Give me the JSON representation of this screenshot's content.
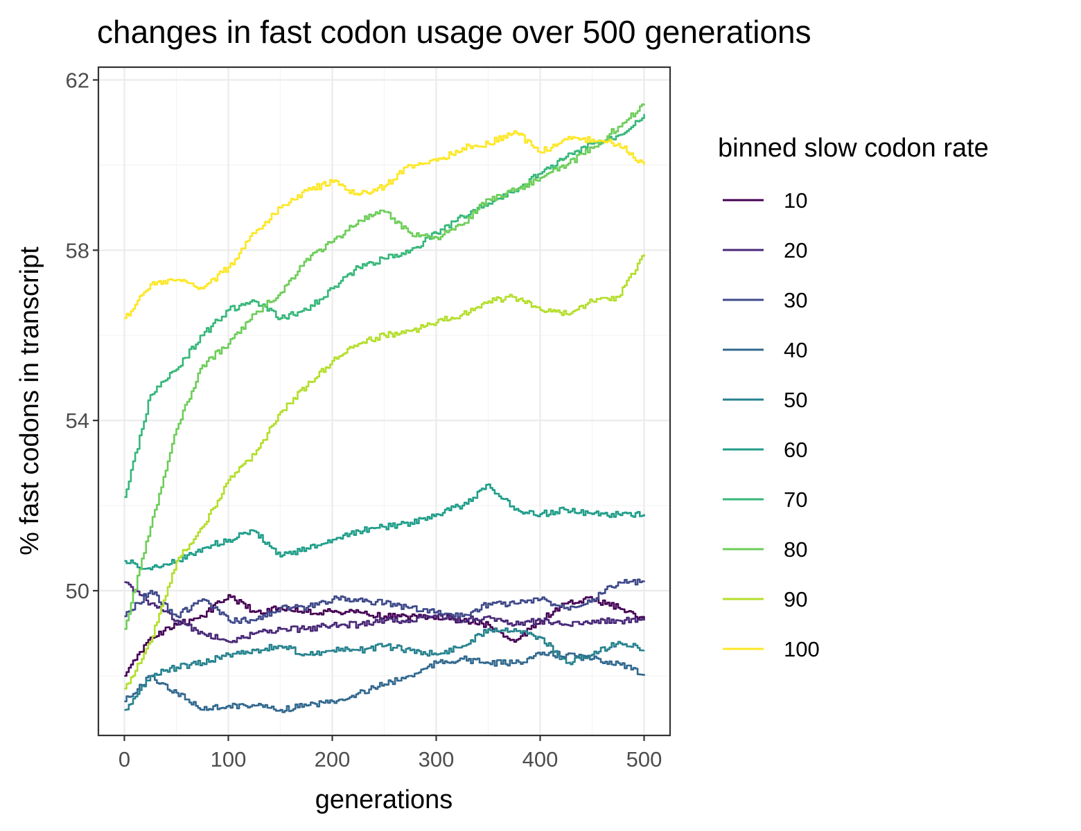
{
  "chart_data": {
    "type": "line",
    "title": "changes in fast codon usage over 500 generations",
    "xlabel": "generations",
    "ylabel": "% fast codons in transcript",
    "xlim": [
      -25,
      525
    ],
    "ylim": [
      46.6,
      62.3
    ],
    "x_ticks": [
      0,
      100,
      200,
      300,
      400,
      500
    ],
    "y_ticks": [
      50,
      54,
      58,
      62
    ],
    "grid": true,
    "legend": {
      "title": "binned slow codon rate",
      "position": "right"
    },
    "x": [
      0,
      25,
      50,
      75,
      100,
      125,
      150,
      175,
      200,
      225,
      250,
      275,
      300,
      325,
      350,
      375,
      400,
      425,
      450,
      475,
      500
    ],
    "series": [
      {
        "name": "10",
        "color": "#440154",
        "values": [
          48.0,
          48.9,
          49.2,
          49.4,
          49.9,
          49.5,
          49.6,
          49.5,
          49.5,
          49.5,
          49.4,
          49.4,
          49.4,
          49.3,
          49.2,
          48.8,
          49.3,
          49.7,
          49.8,
          49.6,
          49.3
        ]
      },
      {
        "name": "20",
        "color": "#482878",
        "values": [
          50.2,
          49.7,
          49.3,
          49.0,
          48.8,
          49.0,
          49.1,
          49.1,
          49.2,
          49.2,
          49.3,
          49.3,
          49.4,
          49.3,
          49.4,
          49.2,
          49.3,
          49.2,
          49.3,
          49.3,
          49.3
        ]
      },
      {
        "name": "30",
        "color": "#3e4989",
        "values": [
          49.4,
          50.0,
          49.4,
          49.8,
          49.3,
          49.3,
          49.6,
          49.6,
          49.8,
          49.8,
          49.7,
          49.6,
          49.5,
          49.4,
          49.7,
          49.7,
          49.8,
          49.6,
          49.8,
          50.2,
          50.2
        ]
      },
      {
        "name": "40",
        "color": "#31688e",
        "values": [
          47.4,
          48.0,
          47.6,
          47.2,
          47.3,
          47.3,
          47.2,
          47.3,
          47.4,
          47.6,
          47.8,
          48.0,
          48.3,
          48.4,
          48.3,
          48.3,
          48.5,
          48.5,
          48.4,
          48.3,
          48.0
        ]
      },
      {
        "name": "50",
        "color": "#26828e",
        "values": [
          47.2,
          48.0,
          48.2,
          48.3,
          48.5,
          48.6,
          48.7,
          48.5,
          48.6,
          48.6,
          48.7,
          48.6,
          48.5,
          48.7,
          49.1,
          49.1,
          48.9,
          48.3,
          48.5,
          48.8,
          48.6
        ]
      },
      {
        "name": "60",
        "color": "#1f9e89",
        "values": [
          50.7,
          50.5,
          50.7,
          51.0,
          51.2,
          51.4,
          50.8,
          51.0,
          51.2,
          51.4,
          51.5,
          51.6,
          51.8,
          52.0,
          52.5,
          51.9,
          51.8,
          51.9,
          51.8,
          51.8,
          51.8
        ]
      },
      {
        "name": "70",
        "color": "#35b779",
        "values": [
          52.2,
          54.6,
          55.2,
          56.0,
          56.6,
          56.8,
          56.4,
          56.6,
          57.1,
          57.6,
          57.8,
          58.0,
          58.4,
          58.8,
          59.1,
          59.4,
          59.8,
          60.2,
          60.5,
          60.7,
          61.2
        ]
      },
      {
        "name": "80",
        "color": "#6dcd59",
        "values": [
          49.1,
          51.5,
          53.8,
          55.3,
          55.8,
          56.5,
          57.0,
          57.8,
          58.2,
          58.7,
          58.9,
          58.4,
          58.3,
          58.6,
          59.2,
          59.4,
          59.7,
          60.0,
          60.4,
          60.9,
          61.4
        ]
      },
      {
        "name": "90",
        "color": "#b4de2c",
        "values": [
          47.7,
          48.8,
          50.7,
          51.5,
          52.6,
          53.2,
          54.2,
          54.8,
          55.4,
          55.8,
          56.0,
          56.1,
          56.3,
          56.5,
          56.8,
          56.9,
          56.6,
          56.5,
          56.8,
          56.9,
          57.9
        ]
      },
      {
        "name": "100",
        "color": "#fde725",
        "values": [
          56.4,
          57.2,
          57.3,
          57.1,
          57.6,
          58.4,
          59.0,
          59.4,
          59.6,
          59.3,
          59.5,
          60.0,
          60.1,
          60.4,
          60.5,
          60.8,
          60.3,
          60.6,
          60.6,
          60.5,
          60.0
        ]
      }
    ]
  }
}
